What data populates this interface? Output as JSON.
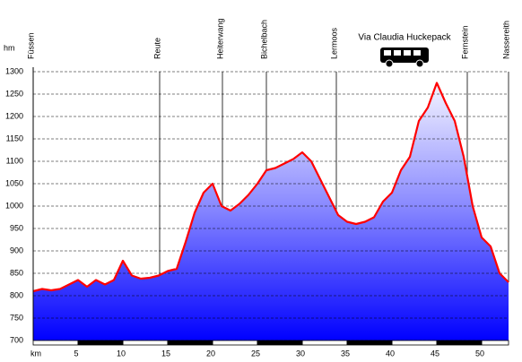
{
  "chart_data": {
    "type": "area",
    "y_unit": "hm",
    "x_unit": "km",
    "annotation": "Via Claudia Huckepack",
    "x": [
      0,
      1,
      2,
      3,
      4,
      5,
      6,
      7,
      8,
      9,
      10,
      11,
      12,
      13,
      14,
      15,
      16,
      17,
      18,
      19,
      20,
      21,
      22,
      23,
      24,
      25,
      26,
      27,
      28,
      29,
      30,
      31,
      32,
      33,
      34,
      35,
      36,
      37,
      38,
      39,
      40,
      41,
      42,
      43,
      44,
      45,
      46,
      47,
      48,
      49,
      50,
      51,
      52,
      53
    ],
    "values": [
      810,
      815,
      812,
      815,
      825,
      835,
      820,
      835,
      825,
      835,
      878,
      845,
      838,
      840,
      845,
      855,
      860,
      920,
      985,
      1030,
      1050,
      1000,
      990,
      1005,
      1025,
      1050,
      1080,
      1085,
      1095,
      1105,
      1120,
      1100,
      1060,
      1020,
      980,
      965,
      960,
      965,
      975,
      1010,
      1030,
      1080,
      1110,
      1190,
      1220,
      1275,
      1230,
      1190,
      1110,
      1000,
      930,
      910,
      850,
      830
    ],
    "line_color": "#ff0000",
    "places": [
      {
        "name": "Füssen",
        "x": 0
      },
      {
        "name": "Reute",
        "x": 14.1
      },
      {
        "name": "Heiterwang",
        "x": 21.1
      },
      {
        "name": "Bichelbach",
        "x": 26
      },
      {
        "name": "Lermoos",
        "x": 33.8
      },
      {
        "name": "Fernstein",
        "x": 48.4
      },
      {
        "name": "Nassereith",
        "x": 53
      }
    ],
    "xlim": [
      0,
      53
    ],
    "xticks": [
      5,
      10,
      15,
      20,
      25,
      30,
      35,
      40,
      45,
      50
    ],
    "ylim": [
      700,
      1300
    ],
    "yticks": [
      700,
      750,
      800,
      850,
      900,
      950,
      1000,
      1050,
      1100,
      1150,
      1200,
      1250,
      1300
    ],
    "grid": true
  }
}
